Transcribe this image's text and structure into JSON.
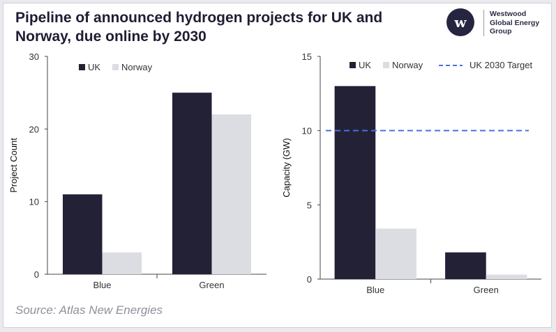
{
  "title": "Pipeline of announced hydrogen projects for UK and Norway, due online by 2030",
  "logo": {
    "mark": "w",
    "lines": [
      "Westwood",
      "Global Energy",
      "Group"
    ]
  },
  "source": "Source: Atlas New Energies",
  "colors": {
    "uk": "#232136",
    "norway": "#dcdce3",
    "target": "#4a6fe0"
  },
  "chart_data": [
    {
      "type": "bar",
      "categories": [
        "Blue",
        "Green"
      ],
      "series": [
        {
          "name": "UK",
          "values": [
            11,
            25
          ]
        },
        {
          "name": "Norway",
          "values": [
            3,
            22
          ]
        }
      ],
      "ylabel": "Project Count",
      "xlabel": "",
      "ylim": [
        0,
        30
      ],
      "yticks": [
        "0",
        "10",
        "20",
        "30"
      ],
      "legend": "top-left"
    },
    {
      "type": "bar",
      "categories": [
        "Blue",
        "Green"
      ],
      "series": [
        {
          "name": "UK",
          "values": [
            13,
            1.8
          ]
        },
        {
          "name": "Norway",
          "values": [
            3.4,
            0.3
          ]
        }
      ],
      "reference_line": {
        "name": "UK 2030 Target",
        "value": 10
      },
      "ylabel": "Capacity (GW)",
      "xlabel": "",
      "ylim": [
        0,
        15
      ],
      "yticks": [
        "0",
        "5",
        "10",
        "15"
      ],
      "legend": "top"
    }
  ]
}
